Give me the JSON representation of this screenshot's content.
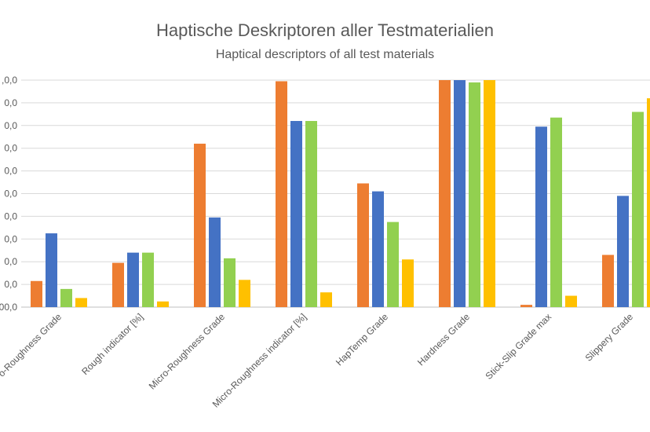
{
  "chart_data": {
    "type": "bar",
    "title": "Haptische Deskriptoren aller Testmaterialien",
    "subtitle": "Haptical descriptors of  all test materials",
    "xlabel": "",
    "ylabel": "",
    "ylim": [
      0,
      100
    ],
    "y_ticks": [
      "00,0",
      "0,0",
      "0,0",
      "0,0",
      "0,0",
      "0,0",
      "0,0",
      "0,0",
      "0,0",
      "0,0",
      ",0,0"
    ],
    "categories": [
      "o-Roughness Grade",
      "Rough  indicator [%]",
      "Micro-Roughness Grade",
      "Micro-Roughness  indicator [%]",
      "HapTemp Grade",
      "Hardness Grade",
      "Stick-Slip Grade max",
      "Slippery Grade"
    ],
    "series": [
      {
        "color": "#ED7D31",
        "values": [
          11.5,
          19.5,
          72.0,
          99.5,
          54.5,
          100.0,
          1.0,
          23.0
        ]
      },
      {
        "color": "#4472C4",
        "values": [
          32.5,
          24.0,
          39.5,
          82.0,
          51.0,
          100.0,
          79.5,
          49.0
        ]
      },
      {
        "color": "#92D050",
        "values": [
          8.0,
          24.0,
          21.5,
          82.0,
          37.5,
          99.0,
          83.5,
          86.0
        ]
      },
      {
        "color": "#FFC000",
        "values": [
          4.0,
          2.5,
          12.0,
          6.5,
          21.0,
          100.0,
          5.0,
          92.0
        ]
      }
    ],
    "grid": true,
    "legend": "none"
  }
}
